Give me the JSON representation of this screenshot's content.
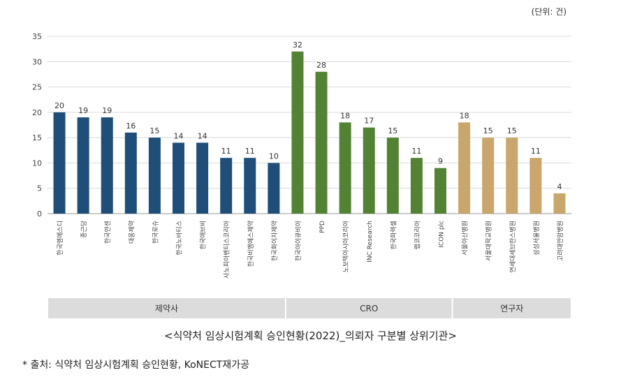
{
  "unit_label": "(단위: 건)",
  "caption": "<식약처 임상시험계획 승인현황(2022)_의뢰자 구분별 상위기관>",
  "source": "* 출처: 식약처 임상시험계획 승인현황, KoNECT재가공",
  "chart_data": {
    "type": "bar",
    "ylim": [
      0,
      35
    ],
    "yticks": [
      0,
      5,
      10,
      15,
      20,
      25,
      30,
      35
    ],
    "grid": true,
    "categories": [
      "한국엠에스디",
      "종근당",
      "한국얀센",
      "대웅제약",
      "한국로슈",
      "한국노바티스",
      "한국애브비",
      "사노피아벤티스코리아",
      "한국비엠에스제약",
      "한국화이자제약",
      "한국아이큐비아",
      "PPD",
      "노보텍아시아코리아",
      "INC Research",
      "한국파렉셀",
      "랩코코리아",
      "ICON plc",
      "서울아산병원",
      "서울대학교병원",
      "연세대세브란스병원",
      "삼성서울병원",
      "고려대안암병원"
    ],
    "values": [
      20,
      19,
      19,
      16,
      15,
      14,
      14,
      11,
      11,
      10,
      32,
      28,
      18,
      17,
      15,
      11,
      9,
      18,
      15,
      15,
      11,
      4
    ],
    "groups": [
      {
        "label": "제약사",
        "start": 0,
        "end": 9,
        "color": "#1f4e79"
      },
      {
        "label": "CRO",
        "start": 10,
        "end": 16,
        "color": "#548235"
      },
      {
        "label": "연구자",
        "start": 17,
        "end": 21,
        "color": "#c9a66b"
      }
    ]
  }
}
